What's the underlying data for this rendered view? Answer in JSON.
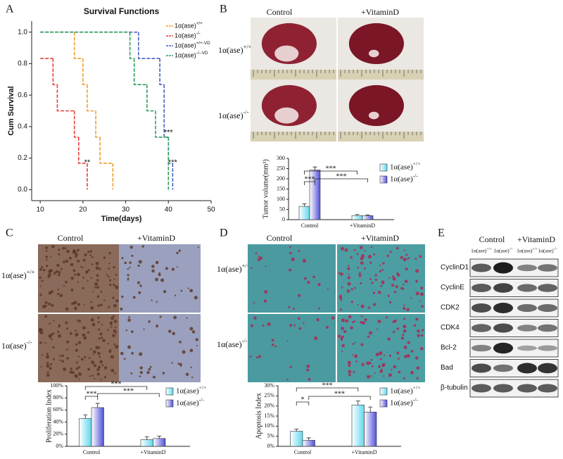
{
  "panels": [
    "A",
    "B",
    "C",
    "D",
    "E"
  ],
  "photo_panels": [
    {
      "columns": [
        "Control",
        "+VitaminD"
      ],
      "rows": [
        "1α(ase)+/+",
        "1α(ase)-/-"
      ]
    },
    {
      "columns": [
        "Control",
        "+VitaminD"
      ],
      "rows": [
        "1α(ase)+/+",
        "1α(ase)-/-"
      ]
    },
    {
      "columns": [
        "Control",
        "+VitaminD"
      ],
      "rows": [
        "1α(ase)+/+",
        "1α(ase)-/-"
      ]
    }
  ],
  "blot": {
    "columns": [
      "Control",
      "+VitaminD"
    ],
    "lanes": [
      "1α(ase)+/+",
      "1α(ase)-/-",
      "1α(ase)+/+",
      "1α(ase)-/-"
    ],
    "rows": [
      "CyclinD1",
      "CyclinE",
      "CDK2",
      "CDK4",
      "Bcl-2",
      "Bad",
      "β-tubulin"
    ]
  },
  "chart_data": [
    {
      "type": "step",
      "title": "Survival Functions",
      "x_label": "Time(days)",
      "y_label": "Cum Survival",
      "xlim": [
        8,
        50
      ],
      "xticks": [
        10,
        20,
        30,
        40,
        50
      ],
      "ylim": [
        -0.07,
        1.07
      ],
      "yticks": [
        {
          "value": 0,
          "label": "0.0"
        },
        0.2,
        0.4,
        0.6,
        0.8,
        {
          "value": 1,
          "label": "1.0"
        }
      ],
      "legend": "upper right",
      "series": [
        {
          "name": "1α(ase)+/+",
          "color": "#f0a030",
          "x": [
            10,
            18,
            20,
            21,
            23,
            24,
            27
          ],
          "values": [
            1,
            0.833,
            0.667,
            0.5,
            0.333,
            0.167,
            0
          ]
        },
        {
          "name": "1α(ase)-/-",
          "color": "#e8413c",
          "x": [
            10,
            13,
            14,
            18,
            19,
            21
          ],
          "values": [
            0.833,
            0.667,
            0.5,
            0.333,
            0.167,
            0
          ]
        },
        {
          "name": "1α(ase)+/+-VD",
          "color": "#4a5fc1",
          "x": [
            10,
            33,
            38,
            39,
            40,
            41
          ],
          "values": [
            1,
            0.833,
            0.667,
            0.333,
            0.167,
            0
          ]
        },
        {
          "name": "1α(ase)-/--VD",
          "color": "#2e9e5e",
          "x": [
            10,
            31,
            32,
            35,
            37,
            40
          ],
          "values": [
            1,
            0.833,
            0.667,
            0.5,
            0.333,
            0
          ]
        }
      ],
      "annotations": [
        "**",
        "***",
        "***"
      ]
    },
    {
      "type": "bar",
      "y_label": "Tumor volume(mm³)",
      "categories": [
        "Control",
        "+VitaminD"
      ],
      "ylim": [
        0,
        300
      ],
      "yticks": [
        0,
        50,
        100,
        150,
        200,
        250,
        300
      ],
      "legend": "right",
      "series": [
        {
          "name": "1α(ase)+/+",
          "color": "#5fd7ee",
          "values": [
            65,
            20
          ],
          "errors": [
            12,
            5
          ]
        },
        {
          "name": "1α(ase)-/-",
          "color": "#5050d8",
          "values": [
            243,
            20
          ],
          "errors": [
            15,
            3
          ]
        }
      ],
      "annotations": [
        "***",
        "***",
        "***"
      ]
    },
    {
      "type": "bar",
      "y_label": "Proliferation Index",
      "categories": [
        "Control",
        "+VitaminD"
      ],
      "ylim": [
        0,
        100
      ],
      "yticks": [
        {
          "value": 0,
          "label": "0%"
        },
        {
          "value": 20,
          "label": "20%"
        },
        {
          "value": 40,
          "label": "40%"
        },
        {
          "value": 60,
          "label": "60%"
        },
        {
          "value": 80,
          "label": "80%"
        },
        {
          "value": 100,
          "label": "100%"
        }
      ],
      "legend": "right",
      "series": [
        {
          "name": "1α(ase)+/+",
          "color": "#5fd7ee",
          "values": [
            46,
            11
          ],
          "errors": [
            6,
            5
          ]
        },
        {
          "name": "1α(ase)-/-",
          "color": "#5050d8",
          "values": [
            64,
            13
          ],
          "errors": [
            7,
            4
          ]
        }
      ],
      "annotations": [
        "***",
        "***",
        "***"
      ]
    },
    {
      "type": "bar",
      "y_label": "Apoptosis Index",
      "categories": [
        "Control",
        "+VitaminD"
      ],
      "ylim": [
        0,
        30
      ],
      "yticks": [
        {
          "value": 0,
          "label": "0%"
        },
        {
          "value": 5,
          "label": "5%"
        },
        {
          "value": 10,
          "label": "10%"
        },
        {
          "value": 15,
          "label": "15%"
        },
        {
          "value": 20,
          "label": "20%"
        },
        {
          "value": 25,
          "label": "25%"
        },
        {
          "value": 30,
          "label": "30%"
        }
      ],
      "legend": "right",
      "series": [
        {
          "name": "1α(ase)+/+",
          "color": "#5fd7ee",
          "values": [
            7.5,
            20.5
          ],
          "errors": [
            1,
            2
          ]
        },
        {
          "name": "1α(ase)-/-",
          "color": "#5050d8",
          "values": [
            3,
            17
          ],
          "errors": [
            1.2,
            2.5
          ]
        }
      ],
      "annotations": [
        "***",
        "*",
        "***"
      ]
    }
  ]
}
